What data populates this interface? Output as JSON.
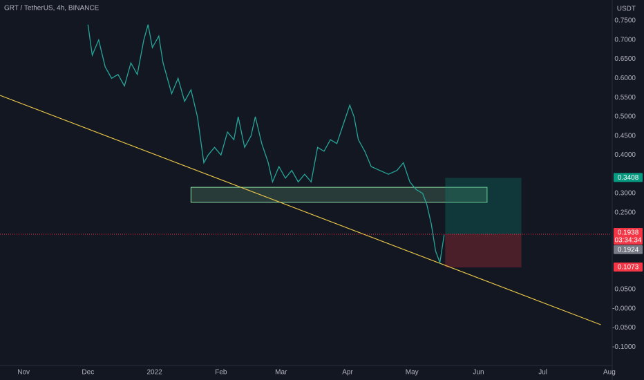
{
  "chart_data": {
    "type": "line",
    "title": "GRT / TetherUS, 4h, BINANCE",
    "currency": "USDT",
    "color": "#26a69a",
    "x": [
      30,
      32,
      35,
      38,
      41,
      44,
      47,
      50,
      53,
      56,
      58,
      60,
      63,
      65,
      67,
      69,
      72,
      75,
      78,
      81,
      84,
      86,
      89,
      92,
      95,
      98,
      100,
      103,
      106,
      108,
      111,
      114,
      116,
      119,
      122,
      125,
      128,
      131,
      134,
      137,
      140,
      143,
      146,
      149,
      152,
      154,
      156,
      159,
      162,
      166,
      170,
      174,
      177,
      180,
      183,
      186,
      188,
      190,
      192,
      194,
      196
    ],
    "values": [
      0.74,
      0.66,
      0.7,
      0.63,
      0.6,
      0.61,
      0.58,
      0.64,
      0.61,
      0.7,
      0.74,
      0.68,
      0.71,
      0.64,
      0.6,
      0.56,
      0.6,
      0.54,
      0.57,
      0.5,
      0.38,
      0.4,
      0.42,
      0.4,
      0.46,
      0.44,
      0.5,
      0.42,
      0.45,
      0.5,
      0.43,
      0.38,
      0.33,
      0.37,
      0.34,
      0.36,
      0.33,
      0.35,
      0.33,
      0.42,
      0.41,
      0.44,
      0.43,
      0.48,
      0.53,
      0.5,
      0.44,
      0.41,
      0.37,
      0.36,
      0.35,
      0.36,
      0.38,
      0.33,
      0.31,
      0.3,
      0.27,
      0.22,
      0.15,
      0.12,
      0.1924
    ],
    "xlim": [
      -11,
      274
    ],
    "xticks": [
      {
        "value": 0,
        "label": "Nov"
      },
      {
        "value": 30,
        "label": "Dec"
      },
      {
        "value": 61,
        "label": "2022"
      },
      {
        "value": 92,
        "label": "Feb"
      },
      {
        "value": 120,
        "label": "Mar"
      },
      {
        "value": 151,
        "label": "Apr"
      },
      {
        "value": 181,
        "label": "May"
      },
      {
        "value": 212,
        "label": "Jun"
      },
      {
        "value": 242,
        "label": "Jul"
      },
      {
        "value": 273,
        "label": "Aug"
      }
    ],
    "ylim": [
      -0.15,
      0.804
    ],
    "yticks": [
      {
        "value": 0.75,
        "label": "0.7500"
      },
      {
        "value": 0.7,
        "label": "0.7000"
      },
      {
        "value": 0.65,
        "label": "0.6500"
      },
      {
        "value": 0.6,
        "label": "0.6000"
      },
      {
        "value": 0.55,
        "label": "0.5500"
      },
      {
        "value": 0.5,
        "label": "0.5000"
      },
      {
        "value": 0.45,
        "label": "0.4500"
      },
      {
        "value": 0.4,
        "label": "0.4000"
      },
      {
        "value": 0.3,
        "label": "0.3000"
      },
      {
        "value": 0.25,
        "label": "0.2500"
      },
      {
        "value": 0.05,
        "label": "0.0500"
      },
      {
        "value": 0,
        "label": "-0.0000"
      },
      {
        "value": -0.05,
        "label": "-0.0500"
      },
      {
        "value": -0.1,
        "label": "-0.1000"
      }
    ],
    "trendline": {
      "x": [
        -11,
        269
      ],
      "y": [
        0.5556,
        -0.042
      ],
      "color": "#e8c547"
    },
    "zone": {
      "x": [
        78,
        216
      ],
      "y": [
        0.277,
        0.316
      ],
      "color": "#8ee6a8"
    },
    "position": {
      "x": [
        196.5,
        232
      ],
      "target": 0.3408,
      "entry": 0.1938,
      "stop": 0.1073
    },
    "price_labels": [
      {
        "value": 0.3408,
        "label": "0.3408",
        "color": "#089981"
      },
      {
        "value": 0.1938,
        "label": "0.1938",
        "color": "#f23645",
        "countdown": "03:34:34"
      },
      {
        "value": 0.1924,
        "label": "0.1924",
        "color": "#787b86"
      },
      {
        "value": 0.1073,
        "label": "0.1073",
        "color": "#f23645"
      }
    ]
  }
}
